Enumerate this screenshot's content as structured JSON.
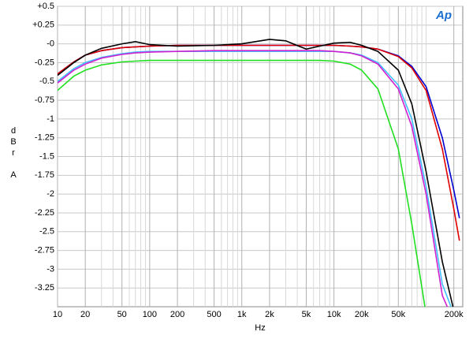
{
  "chart_data": {
    "type": "line",
    "x_label": "Hz",
    "y_label": "dBr A",
    "logo": "Ap",
    "x_log": true,
    "grid": true,
    "xlim": [
      10,
      250000
    ],
    "ylim": [
      -3.5,
      0.5
    ],
    "xticks": [
      10,
      20,
      50,
      100,
      200,
      500,
      {
        "value": 1000,
        "label": "1k"
      },
      {
        "value": 2000,
        "label": "2k"
      },
      {
        "value": 5000,
        "label": "5k"
      },
      {
        "value": 10000,
        "label": "10k"
      },
      {
        "value": 20000,
        "label": "20k"
      },
      {
        "value": 50000,
        "label": "50k"
      },
      {
        "value": 200000,
        "label": "200k"
      }
    ],
    "xminor": [
      30,
      40,
      60,
      70,
      80,
      90,
      300,
      400,
      600,
      700,
      800,
      900,
      3000,
      4000,
      6000,
      7000,
      8000,
      9000,
      30000,
      40000,
      60000,
      70000,
      80000,
      90000,
      100000,
      300000
    ],
    "yticks": [
      {
        "value": 0.5,
        "label": "+0.5"
      },
      {
        "value": 0.25,
        "label": "+0.25"
      },
      {
        "value": 0,
        "label": "-0"
      },
      -0.25,
      -0.5,
      -0.75,
      -1,
      -1.25,
      -1.5,
      -1.75,
      -2,
      -2.25,
      -2.5,
      -2.75,
      -3,
      -3.25
    ],
    "x": [
      10,
      15,
      20,
      30,
      50,
      70,
      100,
      200,
      500,
      1000,
      2000,
      3000,
      5000,
      7000,
      10000,
      15000,
      20000,
      30000,
      50000,
      70000,
      100000,
      150000,
      200000,
      230000
    ],
    "series": [
      {
        "color": "#0000d0",
        "values": [
          -0.4,
          -0.24,
          -0.15,
          -0.09,
          -0.05,
          -0.04,
          -0.03,
          -0.02,
          -0.02,
          -0.02,
          -0.02,
          -0.02,
          -0.02,
          -0.02,
          -0.02,
          -0.03,
          -0.04,
          -0.07,
          -0.16,
          -0.3,
          -0.57,
          -1.25,
          -1.95,
          -2.32
        ]
      },
      {
        "color": "#e00000",
        "values": [
          -0.4,
          -0.24,
          -0.15,
          -0.09,
          -0.05,
          -0.04,
          -0.03,
          -0.02,
          -0.02,
          -0.02,
          -0.02,
          -0.02,
          -0.02,
          -0.02,
          -0.02,
          -0.03,
          -0.04,
          -0.07,
          -0.17,
          -0.32,
          -0.62,
          -1.4,
          -2.2,
          -2.62
        ]
      },
      {
        "color": "#000000",
        "values": [
          -0.42,
          -0.25,
          -0.15,
          -0.06,
          0.0,
          0.03,
          -0.01,
          -0.03,
          -0.02,
          0.0,
          0.06,
          0.04,
          -0.07,
          -0.03,
          0.01,
          0.02,
          -0.02,
          -0.1,
          -0.35,
          -0.8,
          -1.7,
          -2.9,
          -3.55,
          null
        ]
      },
      {
        "color": "#40c0ff",
        "values": [
          -0.5,
          -0.33,
          -0.25,
          -0.18,
          -0.13,
          -0.11,
          -0.1,
          -0.1,
          -0.1,
          -0.1,
          -0.1,
          -0.1,
          -0.1,
          -0.1,
          -0.1,
          -0.12,
          -0.15,
          -0.25,
          -0.55,
          -1.0,
          -1.9,
          -3.2,
          -3.6,
          null
        ]
      },
      {
        "color": "#d020d0",
        "values": [
          -0.52,
          -0.35,
          -0.27,
          -0.19,
          -0.14,
          -0.12,
          -0.11,
          -0.1,
          -0.09,
          -0.09,
          -0.09,
          -0.09,
          -0.09,
          -0.09,
          -0.1,
          -0.12,
          -0.16,
          -0.27,
          -0.6,
          -1.1,
          -2.0,
          -3.35,
          -3.7,
          null
        ]
      },
      {
        "color": "#20e020",
        "values": [
          -0.62,
          -0.43,
          -0.35,
          -0.28,
          -0.24,
          -0.23,
          -0.22,
          -0.22,
          -0.22,
          -0.22,
          -0.22,
          -0.22,
          -0.22,
          -0.22,
          -0.23,
          -0.27,
          -0.35,
          -0.6,
          -1.4,
          -2.4,
          -3.6,
          null,
          null,
          null
        ]
      }
    ]
  }
}
